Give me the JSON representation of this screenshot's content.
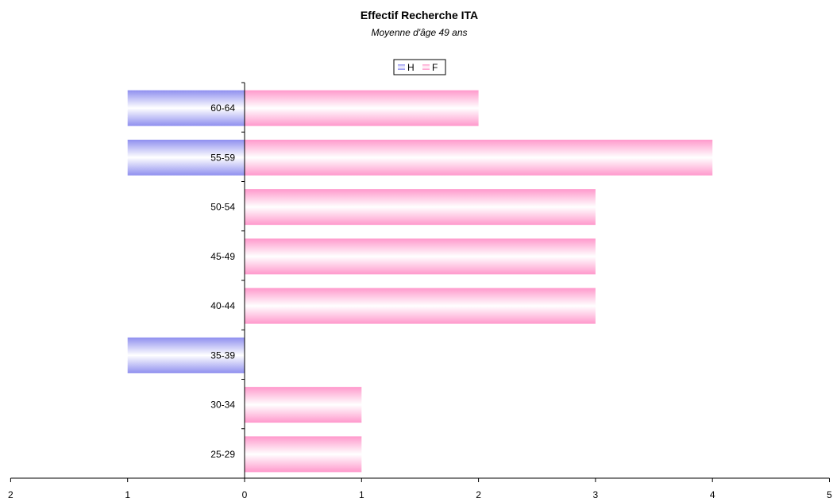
{
  "chart_data": {
    "type": "bar",
    "orientation": "horizontal",
    "style": "population-pyramid",
    "title": "Effectif Recherche ITA",
    "subtitle": "Moyenne d'âge 49 ans",
    "categories": [
      "60-64",
      "55-59",
      "50-54",
      "45-49",
      "40-44",
      "35-39",
      "30-34",
      "25-29"
    ],
    "series": [
      {
        "name": "H",
        "values": [
          1,
          1,
          0,
          0,
          0,
          1,
          0,
          0
        ],
        "direction": "left",
        "color": "#8f8fef",
        "color_light": "#ffffff"
      },
      {
        "name": "F",
        "values": [
          2,
          4,
          3,
          3,
          3,
          0,
          1,
          1
        ],
        "direction": "right",
        "color": "#ff99cc",
        "color_light": "#ffffff"
      }
    ],
    "x_ticks": [
      "2",
      "1",
      "0",
      "1",
      "2",
      "3",
      "4",
      "5"
    ],
    "xlim": [
      -2,
      5
    ],
    "legend": "top-center",
    "grid": false
  }
}
